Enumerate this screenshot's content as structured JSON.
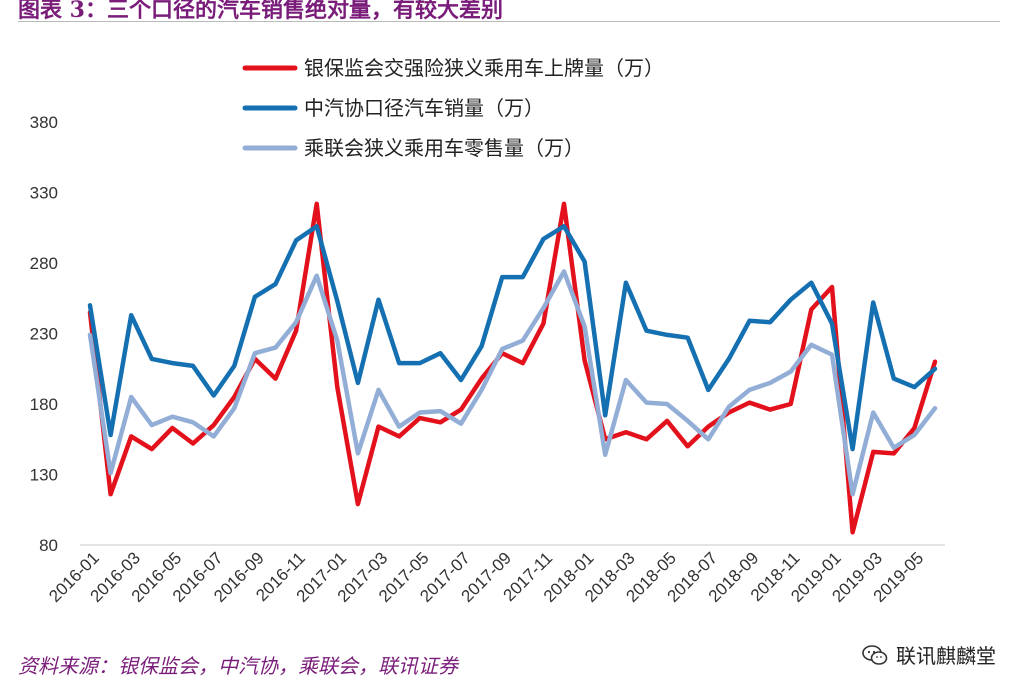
{
  "header": {
    "title": "图表 3：三个口径的汽车销售绝对量，有较大差别"
  },
  "footer": {
    "source": "资料来源：银保监会，中汽协，乘联会，联讯证券",
    "watermark": "联讯麒麟堂"
  },
  "chart_data": {
    "type": "line",
    "title": "",
    "xlabel": "",
    "ylabel": "",
    "ylim": [
      80,
      380
    ],
    "yticks": [
      80,
      130,
      180,
      230,
      280,
      330,
      380
    ],
    "grid": false,
    "legend_position": "top",
    "x": [
      "2016-01",
      "2016-02",
      "2016-03",
      "2016-04",
      "2016-05",
      "2016-06",
      "2016-07",
      "2016-08",
      "2016-09",
      "2016-10",
      "2016-11",
      "2016-12",
      "2017-01",
      "2017-02",
      "2017-03",
      "2017-04",
      "2017-05",
      "2017-06",
      "2017-07",
      "2017-08",
      "2017-09",
      "2017-10",
      "2017-11",
      "2017-12",
      "2018-01",
      "2018-02",
      "2018-03",
      "2018-04",
      "2018-05",
      "2018-06",
      "2018-07",
      "2018-08",
      "2018-09",
      "2018-10",
      "2018-11",
      "2018-12",
      "2019-01",
      "2019-02",
      "2019-03",
      "2019-04",
      "2019-05",
      "2019-06"
    ],
    "xtick_labels": [
      "2016-01",
      "2016-03",
      "2016-05",
      "2016-07",
      "2016-09",
      "2016-11",
      "2017-01",
      "2017-03",
      "2017-05",
      "2017-07",
      "2017-09",
      "2017-11",
      "2018-01",
      "2018-03",
      "2018-05",
      "2018-07",
      "2018-09",
      "2018-11",
      "2019-01",
      "2019-03",
      "2019-05"
    ],
    "series": [
      {
        "name": "银保监会交强险狭义乘用车上牌量（万）",
        "color": "#e3111b",
        "values": [
          245,
          116,
          157,
          148,
          163,
          152,
          165,
          185,
          212,
          198,
          232,
          322,
          192,
          109,
          164,
          157,
          170,
          167,
          176,
          198,
          216,
          209,
          237,
          322,
          211,
          155,
          160,
          155,
          168,
          150,
          164,
          174,
          181,
          176,
          180,
          247,
          263,
          89,
          146,
          145,
          163,
          210
        ]
      },
      {
        "name": "中汽协口径汽车销量（万）",
        "color": "#1570b2",
        "values": [
          250,
          158,
          243,
          212,
          209,
          207,
          186,
          207,
          256,
          265,
          296,
          306,
          253,
          195,
          254,
          209,
          209,
          216,
          197,
          221,
          270,
          270,
          297,
          306,
          281,
          172,
          266,
          232,
          229,
          227,
          190,
          212,
          239,
          238,
          254,
          266,
          237,
          148,
          252,
          198,
          192,
          205
        ]
      },
      {
        "name": "乘联会狭义乘用车零售量（万）",
        "color": "#93aed6",
        "values": [
          229,
          131,
          185,
          165,
          171,
          167,
          157,
          177,
          216,
          220,
          238,
          271,
          225,
          145,
          190,
          164,
          174,
          175,
          166,
          190,
          219,
          225,
          248,
          274,
          235,
          144,
          197,
          181,
          180,
          168,
          155,
          178,
          190,
          195,
          203,
          222,
          215,
          116,
          174,
          149,
          158,
          177
        ]
      }
    ]
  }
}
